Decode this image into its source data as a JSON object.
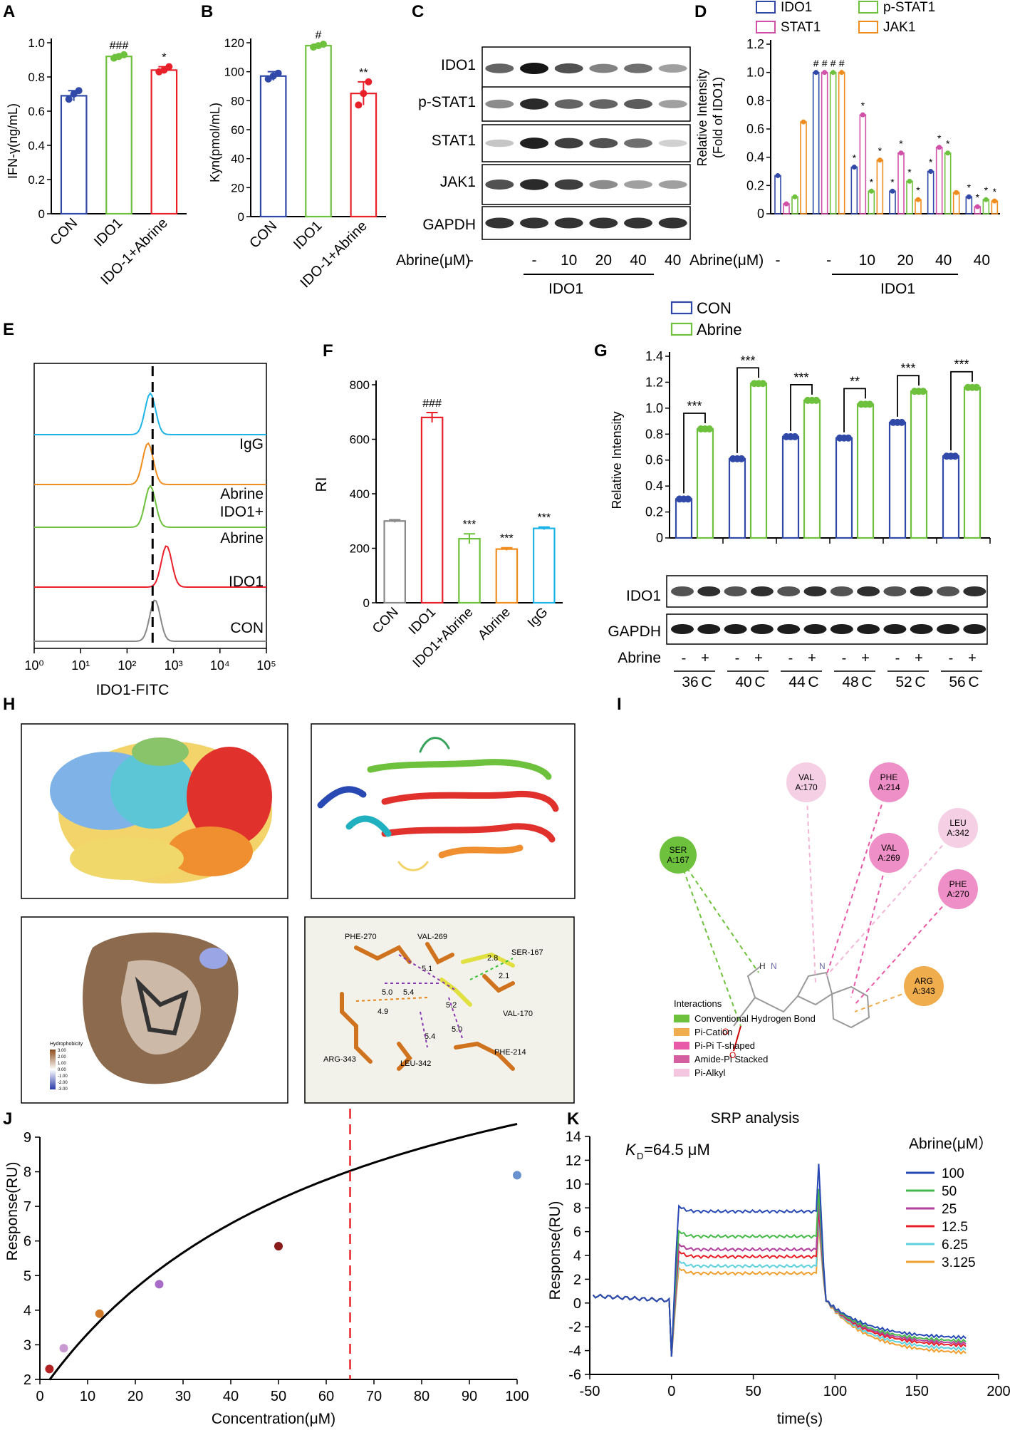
{
  "panel_labels": [
    "A",
    "B",
    "C",
    "D",
    "E",
    "F",
    "G",
    "H",
    "I",
    "J",
    "K"
  ],
  "chart_data": [
    {
      "panel": "A",
      "type": "bar",
      "categories": [
        "CON",
        "IDO1",
        "IDO-1+Abrine"
      ],
      "values": [
        0.69,
        0.92,
        0.84
      ],
      "errors": [
        0.03,
        0.01,
        0.02
      ],
      "points": [
        [
          0.67,
          0.7,
          0.72
        ],
        [
          0.91,
          0.92,
          0.93
        ],
        [
          0.83,
          0.84,
          0.86
        ]
      ],
      "colors": [
        "#3049a8",
        "#6ec13c",
        "#e8202a"
      ],
      "significance": [
        "",
        "###",
        "*"
      ],
      "ylabel": "IFN-γ(ng/mL)",
      "ylim": [
        0,
        1.0
      ],
      "yticks": [
        0,
        0.2,
        0.4,
        0.6,
        0.8,
        1.0
      ],
      "ytick_labels": [
        "0",
        "0.2",
        "0.4",
        "0.6",
        "0.8",
        "1.0"
      ]
    },
    {
      "panel": "B",
      "type": "bar",
      "categories": [
        "CON",
        "IDO1",
        "IDO-1+Abrine"
      ],
      "values": [
        97,
        118,
        85
      ],
      "errors": [
        3,
        1,
        8
      ],
      "points": [
        [
          95,
          97,
          99
        ],
        [
          117,
          118,
          119
        ],
        [
          77,
          85,
          93
        ]
      ],
      "colors": [
        "#3049a8",
        "#6ec13c",
        "#e8202a"
      ],
      "significance": [
        "",
        "#",
        "**"
      ],
      "ylabel": "Kyn(pmol/mL)",
      "ylim": [
        0,
        120
      ],
      "yticks": [
        0,
        20,
        40,
        60,
        80,
        100,
        120
      ],
      "ytick_labels": [
        "0",
        "20",
        "40",
        "60",
        "80",
        "100",
        "120"
      ]
    },
    {
      "panel": "D",
      "type": "bar",
      "ylabel_line1": "Relative Intensity",
      "ylabel_line2": "(Fold of IDO1)",
      "ylim": [
        0,
        1.2
      ],
      "yticks": [
        0,
        0.2,
        0.4,
        0.6,
        0.8,
        1.0,
        1.2
      ],
      "ytick_labels": [
        "0",
        "0.2",
        "0.4",
        "0.6",
        "0.8",
        "1.0",
        "1.2"
      ],
      "legend": [
        "IDO1",
        "STAT1",
        "p-STAT1",
        "JAK1"
      ],
      "series_colors": [
        "#3049a8",
        "#d150a8",
        "#6ec13c",
        "#f08c1e"
      ],
      "groups": [
        "-",
        "-",
        "10",
        "20",
        "40",
        "40"
      ],
      "values": [
        [
          0.27,
          0.07,
          0.12,
          0.65
        ],
        [
          1.0,
          1.0,
          1.0,
          1.0
        ],
        [
          0.33,
          0.7,
          0.16,
          0.38
        ],
        [
          0.16,
          0.43,
          0.23,
          0.1
        ],
        [
          0.3,
          0.47,
          0.43,
          0.15
        ],
        [
          0.12,
          0.05,
          0.1,
          0.09
        ]
      ],
      "stars": [
        [
          "",
          "",
          "",
          ""
        ],
        [
          "#",
          "#",
          "#",
          "#"
        ],
        [
          "*",
          "*",
          "*",
          "*"
        ],
        [
          "*",
          "*",
          "*",
          "*"
        ],
        [
          "*",
          "*",
          "*",
          ""
        ],
        [
          "*",
          "*",
          "*",
          "*"
        ]
      ],
      "xlabel": "Abrine(μM)",
      "group_label": "IDO1"
    },
    {
      "panel": "E",
      "type": "line",
      "title": "",
      "xlabel": "IDO1-FITC",
      "xticks": [
        "10⁰",
        "10¹",
        "10²",
        "10³",
        "10⁴",
        "10⁵"
      ],
      "series": [
        {
          "name": "IgG",
          "color": "#1fb4e8",
          "peak": 2.5
        },
        {
          "name": "Abrine",
          "color": "#f08c1e",
          "peak": 2.45
        },
        {
          "name": "IDO1+",
          "name2": "Abrine",
          "color": "#6ec13c",
          "peak": 2.5
        },
        {
          "name": "IDO1",
          "color": "#e8202a",
          "peak": 2.85
        },
        {
          "name": "CON",
          "color": "#888888",
          "peak": 2.6
        }
      ],
      "dashed_line_at": 2.55
    },
    {
      "panel": "F",
      "type": "bar",
      "categories": [
        "CON",
        "IDO1",
        "IDO1+Abrine",
        "Abrine",
        "IgG"
      ],
      "values": [
        300,
        680,
        235,
        197,
        273
      ],
      "errors": [
        5,
        18,
        18,
        5,
        5
      ],
      "colors": [
        "#888888",
        "#e8202a",
        "#6ec13c",
        "#f08c1e",
        "#1fb4e8"
      ],
      "significance": [
        "",
        "###",
        "***",
        "***",
        "***"
      ],
      "ylabel": "RI",
      "ylim": [
        0,
        800
      ],
      "yticks": [
        0,
        200,
        400,
        600,
        800
      ],
      "ytick_labels": [
        "0",
        "200",
        "400",
        "600",
        "800"
      ]
    },
    {
      "panel": "G",
      "type": "bar",
      "categories": [
        "36",
        "40",
        "44",
        "48",
        "52",
        "56"
      ],
      "category_suffix": "C",
      "series": [
        {
          "name": "CON",
          "color": "#3049a8",
          "values": [
            0.3,
            0.61,
            0.78,
            0.77,
            0.89,
            0.63
          ]
        },
        {
          "name": "Abrine",
          "color": "#6ec13c",
          "values": [
            0.84,
            1.19,
            1.06,
            1.03,
            1.13,
            1.16
          ]
        }
      ],
      "significance": [
        "***",
        "***",
        "***",
        "**",
        "***",
        "***"
      ],
      "ylabel": "Relative Intensity",
      "ylim": [
        0,
        1.4
      ],
      "yticks": [
        0,
        0.2,
        0.4,
        0.6,
        0.8,
        1.0,
        1.2,
        1.4
      ],
      "ytick_labels": [
        "0",
        "0.2",
        "0.4",
        "0.6",
        "0.8",
        "1.0",
        "1.2",
        "1.4"
      ],
      "abrine_label": "Abrine",
      "minus": "-",
      "plus": "+"
    },
    {
      "panel": "J",
      "type": "scatter",
      "x": [
        2,
        5,
        12.5,
        25,
        50,
        100
      ],
      "y": [
        2.3,
        2.9,
        3.9,
        4.75,
        5.85,
        7.9
      ],
      "point_colors": [
        "#b22222",
        "#c99ad1",
        "#d07a2a",
        "#a86bc8",
        "#8b1a1a",
        "#6a92cf"
      ],
      "fit": {
        "Rmax": 12.8,
        "KD": 64.5
      },
      "dashed_x": 65,
      "xlabel": "Concentration(μM)",
      "ylabel": "Response(RU)",
      "xlim": [
        0,
        100
      ],
      "ylim": [
        2,
        9
      ],
      "xticks": [
        0,
        10,
        20,
        30,
        40,
        50,
        60,
        70,
        80,
        90,
        100
      ],
      "yticks": [
        2,
        3,
        4,
        5,
        6,
        7,
        8,
        9
      ]
    },
    {
      "panel": "K",
      "type": "line",
      "title": "SRP analysis",
      "kd_label": "K",
      "kd_sub": "D",
      "kd_value": "=64.5 μM",
      "xlabel": "time(s)",
      "ylabel": "Response(RU)",
      "xlim": [
        -50,
        200
      ],
      "ylim": [
        -6,
        14
      ],
      "xticks": [
        -50,
        0,
        50,
        100,
        150,
        200
      ],
      "yticks": [
        -6,
        -4,
        -2,
        0,
        2,
        4,
        6,
        8,
        10,
        12,
        14
      ],
      "legend_title": "Abrine(μM）",
      "series": [
        {
          "name": "100",
          "color": "#2849b4",
          "plateau": 7.7,
          "end": -3.0
        },
        {
          "name": "50",
          "color": "#47b84a",
          "plateau": 5.6,
          "end": -3.3
        },
        {
          "name": "25",
          "color": "#b23f9c",
          "plateau": 4.5,
          "end": -3.5
        },
        {
          "name": "12.5",
          "color": "#e8202a",
          "plateau": 3.9,
          "end": -3.7
        },
        {
          "name": "6.25",
          "color": "#5fd0df",
          "plateau": 3.1,
          "end": -4.0
        },
        {
          "name": "3.125",
          "color": "#f0a030",
          "plateau": 2.5,
          "end": -4.3
        }
      ]
    }
  ],
  "westernC": {
    "rows": [
      "IDO1",
      "p-STAT1",
      "STAT1",
      "JAK1",
      "GAPDH"
    ],
    "xlabel": "Abrine(μM)",
    "lanes": [
      "-",
      "-",
      "10",
      "20",
      "40",
      "40"
    ],
    "group_label": "IDO1"
  },
  "westernG": {
    "rows": [
      "IDO1",
      "GAPDH"
    ]
  },
  "panelH": {
    "hydrophobicity_title": "Hydrophobicity",
    "hydro_ticks": [
      "3.00",
      "2.00",
      "1.00",
      "0.00",
      "-1.00",
      "-2.00",
      "-3.00"
    ],
    "residues": [
      "PHE-270",
      "VAL-269",
      "SER-167",
      "VAL-170",
      "ARG-343",
      "LEU-342",
      "PHE-214"
    ],
    "distances": [
      "2.8",
      "2.1",
      "5.1",
      "5.0",
      "5.4",
      "5.2",
      "4.9",
      "5.4",
      "5.0"
    ]
  },
  "panelI": {
    "residues": [
      {
        "name": "SER",
        "pos": "A:167",
        "color": "#6ec13c"
      },
      {
        "name": "VAL",
        "pos": "A:170",
        "color": "#f5cfe3"
      },
      {
        "name": "PHE",
        "pos": "A:214",
        "color": "#ee8fc7"
      },
      {
        "name": "LEU",
        "pos": "A:342",
        "color": "#f5cfe3"
      },
      {
        "name": "VAL",
        "pos": "A:269",
        "color": "#ee8fc7"
      },
      {
        "name": "PHE",
        "pos": "A:270",
        "color": "#ee8fc7"
      },
      {
        "name": "ARG",
        "pos": "A:343",
        "color": "#f0ad4e"
      }
    ],
    "atoms": [
      "H",
      "N",
      "O",
      "O",
      "N"
    ],
    "legend_title": "Interactions",
    "legend": [
      {
        "label": "Conventional Hydrogen Bond",
        "color": "#6ec13c"
      },
      {
        "label": "Pi-Cation",
        "color": "#f0ad4e"
      },
      {
        "label": "Pi-Pi  T-shaped",
        "color": "#e85aa8"
      },
      {
        "label": "Amide-Pi  Stacked",
        "color": "#d45fa0"
      },
      {
        "label": "Pi-Alkyl",
        "color": "#f5c6e0"
      }
    ]
  }
}
